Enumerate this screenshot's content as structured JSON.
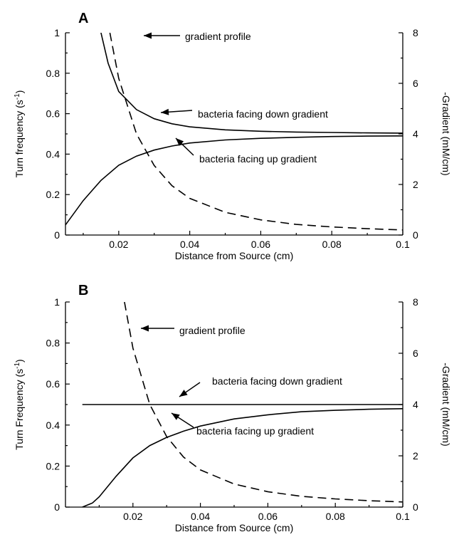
{
  "chart_data": [
    {
      "panel_label": "A",
      "type": "line",
      "xlabel": "Distance from Source (cm)",
      "ylabel_left": "Turn frequency (s-1)",
      "ylabel_right": "-Gradient (mM/cm)",
      "xlim": [
        0.005,
        0.1
      ],
      "ylim_left": [
        0,
        1
      ],
      "ylim_right": [
        0,
        8
      ],
      "x_ticks": [
        0.02,
        0.04,
        0.06,
        0.08,
        0.1
      ],
      "x_tick_labels": [
        "0.02",
        "0.04",
        "0.06",
        "0.08",
        "0.1"
      ],
      "y_ticks_left": [
        0,
        0.2,
        0.4,
        0.6,
        0.8,
        1
      ],
      "y_tick_labels_left": [
        "0",
        "0.2",
        "0.4",
        "0.6",
        "0.8",
        "1"
      ],
      "y_ticks_right": [
        0,
        2,
        4,
        6,
        8
      ],
      "y_tick_labels_right": [
        "0",
        "2",
        "4",
        "6",
        "8"
      ],
      "series": [
        {
          "name": "bacteria facing down gradient",
          "axis": "left",
          "style": "solid",
          "x": [
            0.015,
            0.017,
            0.02,
            0.025,
            0.03,
            0.035,
            0.04,
            0.05,
            0.06,
            0.07,
            0.08,
            0.09,
            0.1
          ],
          "y": [
            1.0,
            0.85,
            0.71,
            0.62,
            0.575,
            0.55,
            0.535,
            0.52,
            0.513,
            0.509,
            0.507,
            0.505,
            0.504
          ]
        },
        {
          "name": "bacteria facing up gradient",
          "axis": "left",
          "style": "solid",
          "x": [
            0.005,
            0.01,
            0.015,
            0.02,
            0.025,
            0.03,
            0.035,
            0.04,
            0.05,
            0.06,
            0.07,
            0.08,
            0.09,
            0.1
          ],
          "y": [
            0.05,
            0.17,
            0.27,
            0.345,
            0.39,
            0.42,
            0.44,
            0.455,
            0.47,
            0.478,
            0.483,
            0.487,
            0.489,
            0.49
          ]
        },
        {
          "name": "gradient profile",
          "axis": "right",
          "style": "dashed",
          "x": [
            0.0175,
            0.02,
            0.025,
            0.03,
            0.035,
            0.04,
            0.05,
            0.06,
            0.07,
            0.08,
            0.09,
            0.1
          ],
          "y": [
            8.0,
            6.2,
            4.0,
            2.75,
            1.95,
            1.45,
            0.9,
            0.6,
            0.42,
            0.32,
            0.25,
            0.2
          ]
        }
      ],
      "annotations": [
        {
          "text": "gradient profile",
          "points_to": 0.0195,
          "series": 2
        },
        {
          "text": "bacteria facing down gradient",
          "points_to": 0.03,
          "series": 0
        },
        {
          "text": "bacteria facing up gradient",
          "points_to": 0.035,
          "series": 1
        }
      ]
    },
    {
      "panel_label": "B",
      "type": "line",
      "xlabel": "Distance from Source (cm)",
      "ylabel_left": "Turn Frequency (s-1)",
      "ylabel_right": "-Gradient (mM/cm)",
      "xlim": [
        0.0,
        0.1
      ],
      "ylim_left": [
        0,
        1
      ],
      "ylim_right": [
        0,
        8
      ],
      "x_ticks": [
        0.02,
        0.04,
        0.06,
        0.08,
        0.1
      ],
      "x_tick_labels": [
        "0.02",
        "0.04",
        "0.06",
        "0.08",
        "0.1"
      ],
      "y_ticks_left": [
        0,
        0.2,
        0.4,
        0.6,
        0.8,
        1
      ],
      "y_tick_labels_left": [
        "0",
        "0.2",
        "0.4",
        "0.6",
        "0.8",
        "1"
      ],
      "y_ticks_right": [
        0,
        2,
        4,
        6,
        8
      ],
      "y_tick_labels_right": [
        "0",
        "2",
        "4",
        "6",
        "8"
      ],
      "series": [
        {
          "name": "bacteria facing down gradient",
          "axis": "left",
          "style": "solid",
          "x": [
            0.005,
            0.1
          ],
          "y": [
            0.5,
            0.5
          ]
        },
        {
          "name": "bacteria facing up gradient",
          "axis": "left",
          "style": "solid",
          "x": [
            0.005,
            0.008,
            0.01,
            0.015,
            0.02,
            0.025,
            0.03,
            0.035,
            0.04,
            0.05,
            0.06,
            0.07,
            0.08,
            0.09,
            0.1
          ],
          "y": [
            0.0,
            0.02,
            0.05,
            0.15,
            0.24,
            0.3,
            0.34,
            0.37,
            0.395,
            0.43,
            0.45,
            0.465,
            0.472,
            0.477,
            0.48
          ]
        },
        {
          "name": "gradient profile",
          "axis": "right",
          "style": "dashed",
          "x": [
            0.0175,
            0.02,
            0.025,
            0.03,
            0.035,
            0.04,
            0.05,
            0.06,
            0.07,
            0.08,
            0.09,
            0.1
          ],
          "y": [
            8.0,
            6.2,
            4.0,
            2.75,
            1.95,
            1.45,
            0.9,
            0.6,
            0.42,
            0.32,
            0.25,
            0.2
          ]
        }
      ],
      "annotations": [
        {
          "text": "gradient profile",
          "points_to": 0.0195,
          "series": 2
        },
        {
          "text": "bacteria facing down gradient",
          "points_to": 0.032,
          "series": 0
        },
        {
          "text": "bacteria facing up gradient",
          "points_to": 0.033,
          "series": 1
        }
      ]
    }
  ]
}
